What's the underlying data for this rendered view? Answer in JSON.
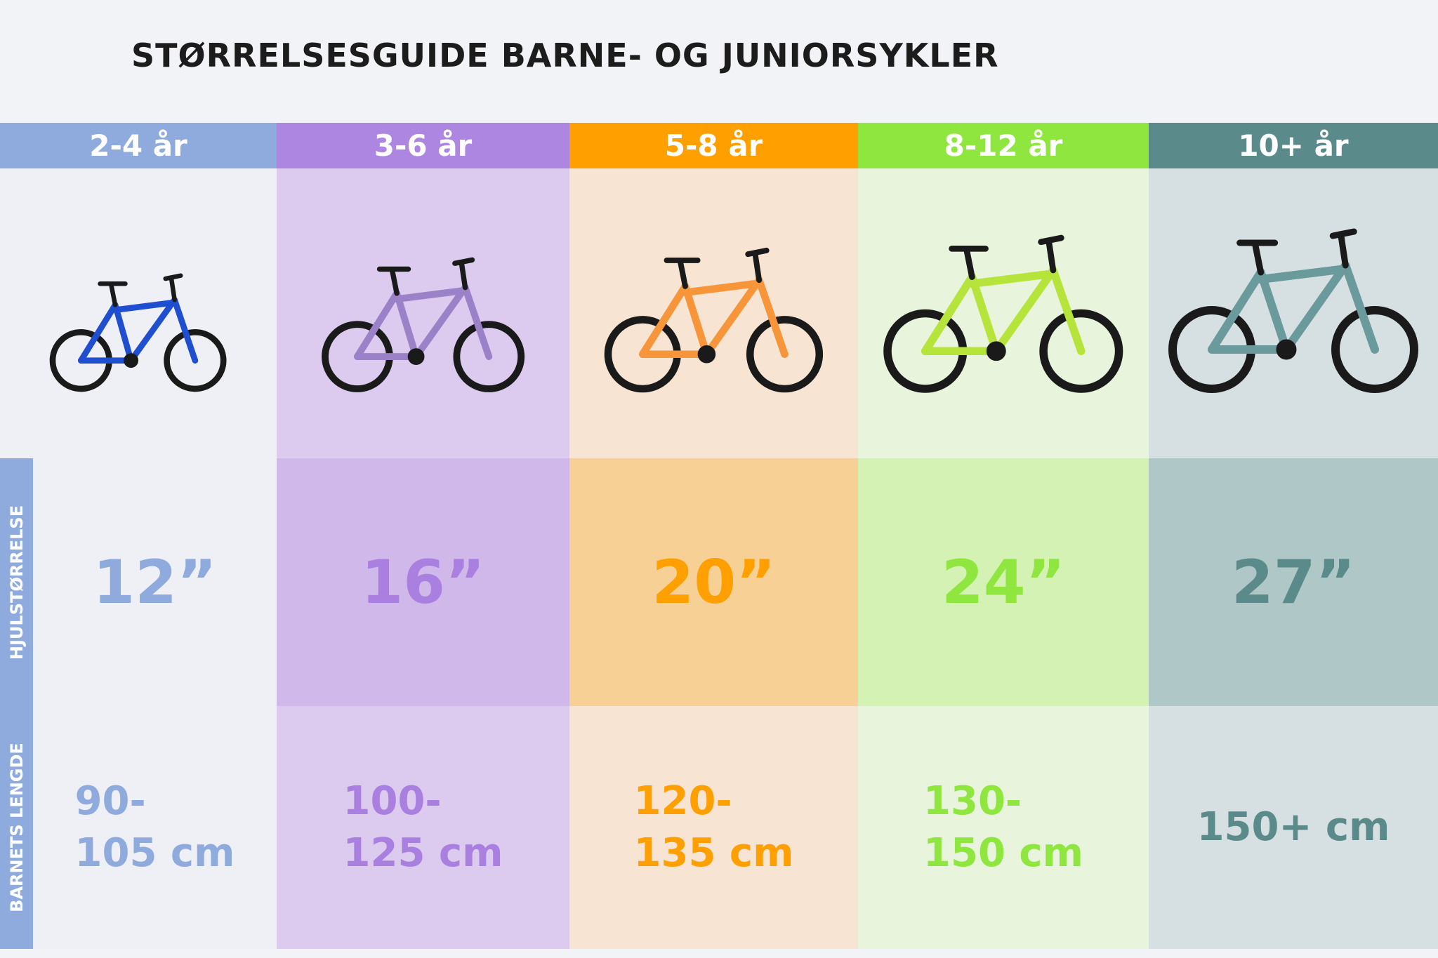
{
  "title": "STØRRELSESGUIDE BARNE- OG JUNIORSYKLER",
  "side_labels": {
    "wheel": "HJULSTØRRELSE",
    "length": "BARNETS LENGDE"
  },
  "columns": [
    {
      "age": "2-4 år",
      "wheel": "12”",
      "length": [
        "90-",
        "105 cm"
      ]
    },
    {
      "age": "3-6 år",
      "wheel": "16”",
      "length": [
        "100-",
        "125 cm"
      ]
    },
    {
      "age": "5-8 år",
      "wheel": "20”",
      "length": [
        "120-",
        "135 cm"
      ]
    },
    {
      "age": "8-12 år",
      "wheel": "24”",
      "length": [
        "130-",
        "150 cm"
      ]
    },
    {
      "age": "10+ år",
      "wheel": "27”",
      "length": [
        "150+ cm"
      ]
    }
  ]
}
